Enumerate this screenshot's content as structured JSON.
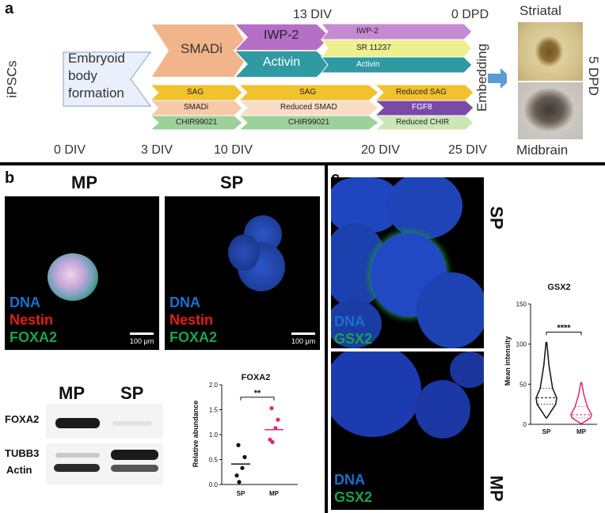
{
  "panel_a": {
    "letter": "a",
    "ipscs": "iPSCs",
    "embryoid": [
      "Embryoid",
      "body",
      "formation"
    ],
    "smadi_top": "SMADi",
    "iwp2_top": "IWP-2",
    "activin_top": "Activin",
    "div13": "13 DIV",
    "dpd0": "0 DPD",
    "right_top": [
      "IWP-2",
      "SR 11237",
      "Activin"
    ],
    "bottom_first": [
      "SAG",
      "SMADi",
      "CHIR99021"
    ],
    "bottom_second": [
      "SAG",
      "Reduced SMAD",
      "CHIR99021"
    ],
    "bottom_third": [
      "Reduced SAG",
      "FGF8",
      "Reduced CHIR"
    ],
    "embedding": "Embedding",
    "striatal": "Striatal",
    "midbrain": "Midbrain",
    "dpd5": "5 DPD",
    "timeline": [
      "0 DIV",
      "3 DIV",
      "10 DIV",
      "20 DIV",
      "25 DIV"
    ]
  },
  "panel_b": {
    "letter": "b",
    "mp_title": "MP",
    "sp_title": "SP",
    "stain_labels": [
      "DNA",
      "Nestin",
      "FOXA2"
    ],
    "scale_bar": "100 μm",
    "blot_mp": "MP",
    "blot_sp": "SP",
    "blot_foxa2": "FOXA2",
    "blot_tubb3": "TUBB3",
    "blot_actin": "Actin"
  },
  "panel_c": {
    "letter": "c",
    "sp_label": "SP",
    "mp_label": "MP",
    "stain_labels": [
      "DNA",
      "GSX2"
    ]
  },
  "colors": {
    "dna": "#1a6fd1",
    "nestin": "#e0201c",
    "foxa2": "#1aa34a",
    "sp_series": "#111111",
    "mp_series": "#e0267a"
  },
  "chart_data": [
    {
      "type": "scatter",
      "title": "FOXA2",
      "xlabel": "",
      "ylabel": "Relative abundance",
      "categories": [
        "SP",
        "MP"
      ],
      "ylim": [
        0.0,
        2.0
      ],
      "yticks": [
        "0.0",
        "0.5",
        "1.0",
        "1.5",
        "2.0"
      ],
      "series": [
        {
          "name": "SP",
          "values": [
            0.79,
            0.55,
            0.33,
            0.18,
            0.05
          ],
          "mean": 0.41
        },
        {
          "name": "MP",
          "values": [
            1.53,
            1.3,
            1.13,
            0.9,
            0.85
          ],
          "mean": 1.1
        }
      ],
      "annotation": "**"
    },
    {
      "type": "violin",
      "title": "GSX2",
      "xlabel": "",
      "ylabel": "Mean intensity",
      "categories": [
        "SP",
        "MP"
      ],
      "ylim": [
        0,
        150
      ],
      "yticks": [
        "0",
        "50",
        "100",
        "150"
      ],
      "series": [
        {
          "name": "SP",
          "min": 8,
          "q1": 25,
          "median": 33,
          "q3": 45,
          "max": 102
        },
        {
          "name": "MP",
          "min": 1,
          "q1": 8,
          "median": 12,
          "q3": 22,
          "max": 52
        }
      ],
      "annotation": "****"
    }
  ]
}
